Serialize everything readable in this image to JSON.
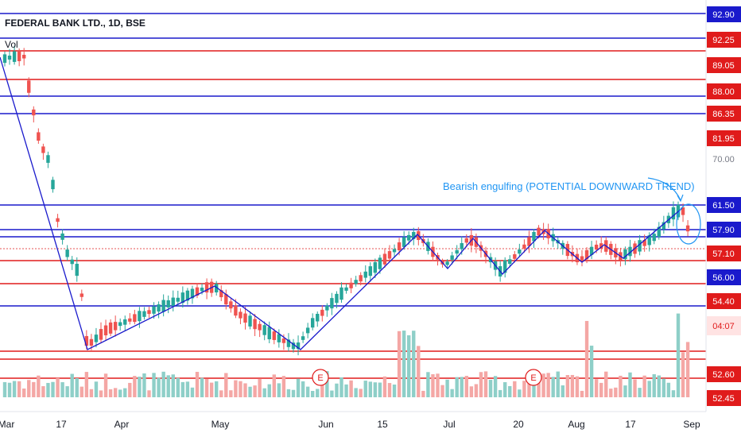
{
  "chart_data": {
    "type": "candlestick",
    "title": "FEDERAL BANK LTD., 1D, BSE",
    "volume_label": "Vol",
    "annotation": "Bearish engulfing (POTENTIAL DOWNWARD TREND)",
    "countdown": "04:07",
    "earnings_marker": "E",
    "x_tick_labels": [
      "Mar",
      "17",
      "Apr",
      "May",
      "Jun",
      "15",
      "Jul",
      "20",
      "Aug",
      "17",
      "Sep"
    ],
    "y_tick_labels_plain": [
      "70.00"
    ],
    "horizontal_levels": [
      {
        "value": "92.90",
        "color": "#1a1acc"
      },
      {
        "value": "92.25",
        "color": "#e01b1b"
      },
      {
        "value": "89.05",
        "color": "#e01b1b"
      },
      {
        "value": "88.00",
        "color": "#e01b1b"
      },
      {
        "value": "86.35",
        "color": "#e01b1b"
      },
      {
        "value": "81.95",
        "color": "#e01b1b"
      },
      {
        "value": "61.50",
        "color": "#1a1acc"
      },
      {
        "value": "57.90",
        "color": "#1a1acc"
      },
      {
        "value": "57.10",
        "color": "#e01b1b"
      },
      {
        "value": "56.00",
        "color": "#1a1acc"
      },
      {
        "value": "54.40",
        "color": "#e01b1b"
      },
      {
        "value": "52.60",
        "color": "#e01b1b"
      },
      {
        "value": "52.45",
        "color": "#e01b1b"
      }
    ],
    "colors": {
      "up": "#26a69a",
      "down": "#ef5350",
      "vol_up": "#8ecfc8",
      "vol_down": "#f4a7a5",
      "blue": "#1a1acc",
      "red": "#e01b1b",
      "annotation": "#2196f3"
    }
  }
}
